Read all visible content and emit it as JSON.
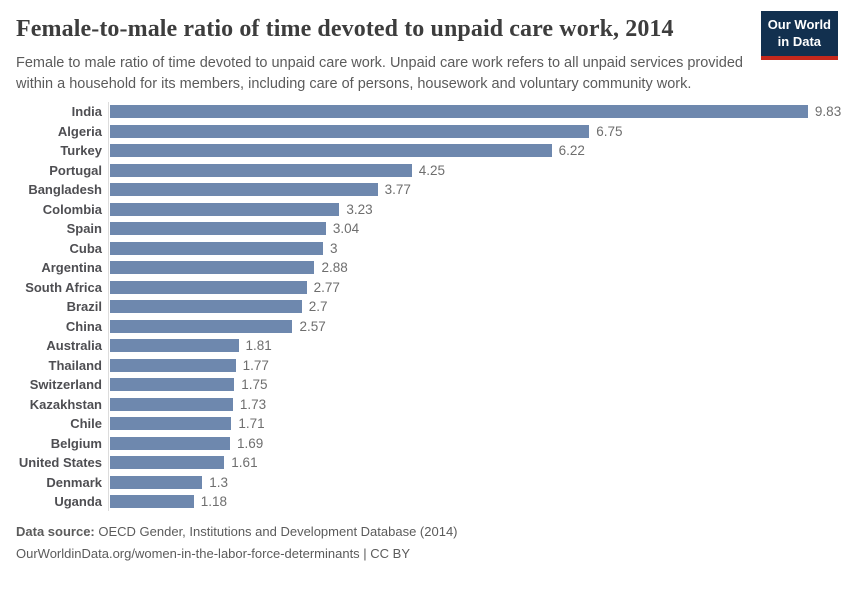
{
  "header": {
    "title": "Female-to-male ratio of time devoted to unpaid care work, 2014",
    "subtitle": "Female to male ratio of time devoted to unpaid care work. Unpaid care work refers to all unpaid services provided within a household for its members, including care of persons, housework and voluntary community work.",
    "logo": {
      "line1": "Our World",
      "line2": "in Data"
    }
  },
  "chart_data": {
    "type": "bar",
    "orientation": "horizontal",
    "title": "Female-to-male ratio of time devoted to unpaid care work, 2014",
    "categories": [
      "India",
      "Algeria",
      "Turkey",
      "Portugal",
      "Bangladesh",
      "Colombia",
      "Spain",
      "Cuba",
      "Argentina",
      "South Africa",
      "Brazil",
      "China",
      "Australia",
      "Thailand",
      "Switzerland",
      "Kazakhstan",
      "Chile",
      "Belgium",
      "United States",
      "Denmark",
      "Uganda"
    ],
    "values": [
      9.83,
      6.75,
      6.22,
      4.25,
      3.77,
      3.23,
      3.04,
      3,
      2.88,
      2.77,
      2.7,
      2.57,
      1.81,
      1.77,
      1.75,
      1.73,
      1.71,
      1.69,
      1.61,
      1.3,
      1.18
    ],
    "xlabel": "",
    "ylabel": "",
    "xlim": [
      0,
      10
    ],
    "grid": false,
    "legend": false,
    "bar_color": "#6e88ae",
    "axis_line_color": "#dcdcdc"
  },
  "footer": {
    "source_label": "Data source:",
    "source_text": " OECD Gender, Institutions and Development Database (2014)",
    "link_line": "OurWorldinData.org/women-in-the-labor-force-determinants | CC BY"
  }
}
